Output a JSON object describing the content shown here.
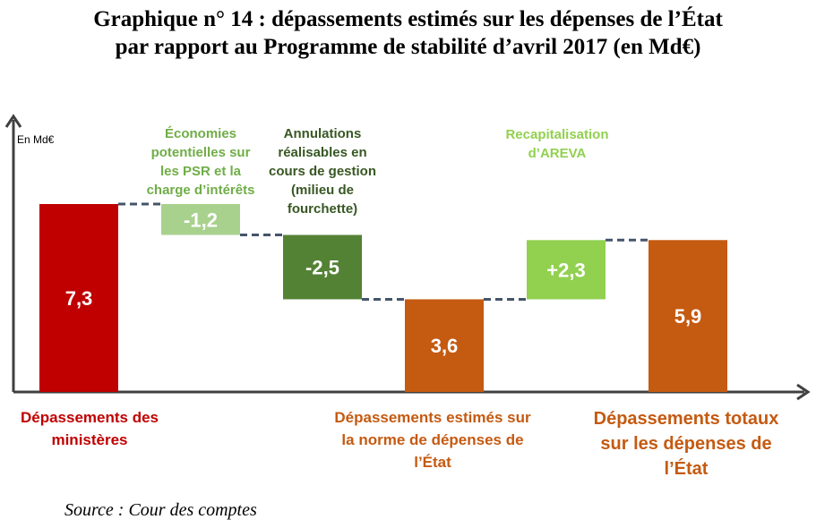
{
  "title_line1": "Graphique n° 14 : dépassements estimés sur les dépenses de l’État",
  "title_line2": "par rapport au Programme de stabilité d’avril 2017 (en Md€)",
  "source": "Source : Cour des comptes",
  "chart_data": {
    "type": "waterfall",
    "unit_label": "En Md€",
    "ylim": [
      0,
      9.5
    ],
    "grid": false,
    "bars": [
      {
        "label": "7,3",
        "kind": "total",
        "value": 7.3,
        "color": "#c00000",
        "text_color": "#ffffff",
        "category": "Dépassements des ministères",
        "category_color": "#c00000",
        "annotation": ""
      },
      {
        "label": "-1,2",
        "kind": "delta",
        "value": -1.2,
        "color": "#a9d18e",
        "text_color": "#ffffff",
        "category": "",
        "annotation": "Économies potentielles sur les PSR et la charge d’intérêts",
        "annotation_color": "#70ad47"
      },
      {
        "label": "-2,5",
        "kind": "delta",
        "value": -2.5,
        "color": "#548235",
        "text_color": "#ffffff",
        "category": "",
        "annotation": "Annulations réalisables en cours de gestion (milieu de fourchette)",
        "annotation_color": "#385723"
      },
      {
        "label": "3,6",
        "kind": "total",
        "value": 3.6,
        "color": "#c55a11",
        "text_color": "#ffffff",
        "category": "Dépassements estimés sur la norme de dépenses de l’État",
        "category_color": "#c55a11",
        "annotation": ""
      },
      {
        "label": "+2,3",
        "kind": "delta",
        "value": 2.3,
        "color": "#92d050",
        "text_color": "#ffffff",
        "category": "",
        "annotation": "Recapitalisation d’AREVA",
        "annotation_color": "#92d050"
      },
      {
        "label": "5,9",
        "kind": "total",
        "value": 5.9,
        "color": "#c55a11",
        "text_color": "#ffffff",
        "category": "Dépassements totaux sur les dépenses de l’État",
        "category_color": "#c55a11",
        "annotation": ""
      }
    ]
  }
}
